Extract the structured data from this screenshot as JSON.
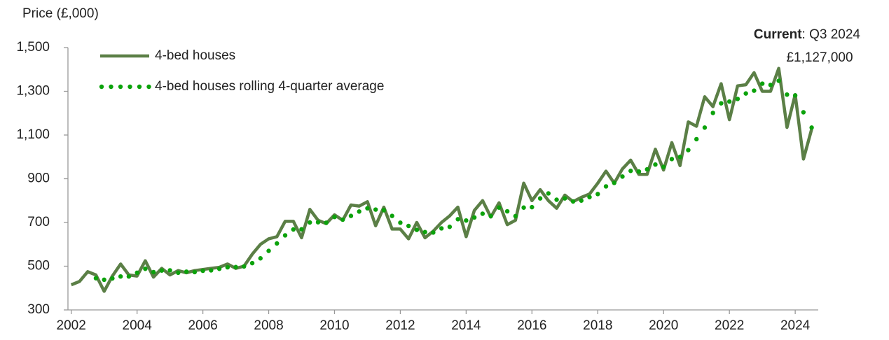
{
  "chart_data": {
    "type": "line",
    "y_label": "Price (£,000)",
    "annotation": {
      "lead": "Current",
      "text": ": Q3 2024",
      "value_label": "£1,127,000"
    },
    "x": [
      2002,
      2002.25,
      2002.5,
      2002.75,
      2003,
      2003.25,
      2003.5,
      2003.75,
      2004,
      2004.25,
      2004.5,
      2004.75,
      2005,
      2005.25,
      2005.5,
      2005.75,
      2006,
      2006.25,
      2006.5,
      2006.75,
      2007,
      2007.25,
      2007.5,
      2007.75,
      2008,
      2008.25,
      2008.5,
      2008.75,
      2009,
      2009.25,
      2009.5,
      2009.75,
      2010,
      2010.25,
      2010.5,
      2010.75,
      2011,
      2011.25,
      2011.5,
      2011.75,
      2012,
      2012.25,
      2012.5,
      2012.75,
      2013,
      2013.25,
      2013.5,
      2013.75,
      2014,
      2014.25,
      2014.5,
      2014.75,
      2015,
      2015.25,
      2015.5,
      2015.75,
      2016,
      2016.25,
      2016.5,
      2016.75,
      2017,
      2017.25,
      2017.5,
      2017.75,
      2018,
      2018.25,
      2018.5,
      2018.75,
      2019,
      2019.25,
      2019.5,
      2019.75,
      2020,
      2020.25,
      2020.5,
      2020.75,
      2021,
      2021.25,
      2021.5,
      2021.75,
      2022,
      2022.25,
      2022.5,
      2022.75,
      2023,
      2023.25,
      2023.5,
      2023.75,
      2024,
      2024.25,
      2024.5
    ],
    "series": [
      {
        "name": "4-bed houses",
        "color": "#5b7f46",
        "style": "solid",
        "values": [
          415,
          430,
          475,
          460,
          385,
          455,
          510,
          460,
          455,
          525,
          450,
          490,
          460,
          480,
          470,
          480,
          485,
          490,
          495,
          510,
          490,
          500,
          555,
          600,
          625,
          635,
          705,
          705,
          630,
          760,
          710,
          695,
          735,
          710,
          780,
          775,
          795,
          685,
          770,
          670,
          670,
          625,
          700,
          630,
          660,
          700,
          730,
          770,
          635,
          755,
          800,
          725,
          790,
          690,
          710,
          880,
          800,
          850,
          800,
          765,
          825,
          795,
          815,
          830,
          880,
          935,
          880,
          945,
          985,
          920,
          920,
          1035,
          940,
          1065,
          960,
          1160,
          1140,
          1275,
          1230,
          1335,
          1170,
          1325,
          1330,
          1385,
          1300,
          1300,
          1405,
          1135,
          1285,
          990,
          1127
        ]
      },
      {
        "name": "4-bed houses rolling 4-quarter average",
        "color": "#0ba20b",
        "style": "dotted",
        "values": [
          null,
          null,
          null,
          445,
          438,
          444,
          453,
          453,
          470,
          488,
          473,
          480,
          481,
          470,
          475,
          473,
          479,
          481,
          488,
          495,
          496,
          499,
          514,
          536,
          570,
          604,
          641,
          668,
          669,
          700,
          701,
          699,
          725,
          713,
          730,
          750,
          765,
          759,
          756,
          730,
          699,
          684,
          666,
          656,
          654,
          673,
          680,
          715,
          709,
          723,
          740,
          729,
          768,
          751,
          729,
          768,
          770,
          810,
          833,
          804,
          810,
          796,
          800,
          816,
          830,
          865,
          881,
          910,
          936,
          933,
          943,
          965,
          954,
          990,
          1000,
          1031,
          1081,
          1134,
          1201,
          1245,
          1253,
          1265,
          1290,
          1303,
          1335,
          1329,
          1348,
          1285,
          1281,
          1204,
          1134
        ]
      }
    ],
    "xlim": [
      2001.9,
      2024.7
    ],
    "xticks": [
      2002,
      2004,
      2006,
      2008,
      2010,
      2012,
      2014,
      2016,
      2018,
      2020,
      2022,
      2024
    ],
    "ylim": [
      300,
      1500
    ],
    "yticks": [
      300,
      500,
      700,
      900,
      {
        "value": 1100,
        "label": "1,100"
      },
      {
        "value": 1300,
        "label": "1,300"
      },
      {
        "value": 1500,
        "label": "1,500"
      }
    ],
    "grid": false,
    "legend": "upper left"
  }
}
